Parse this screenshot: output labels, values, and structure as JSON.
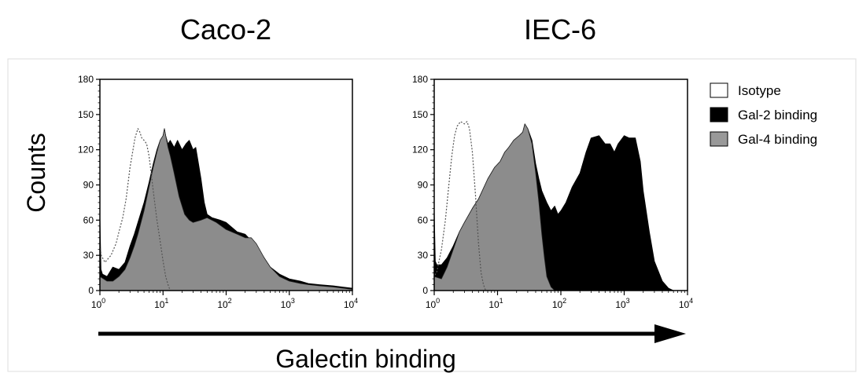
{
  "chart_data": [
    {
      "type": "area",
      "title": "Caco-2",
      "ylabel": "Counts",
      "xscale": "log",
      "xlim": [
        1,
        10000
      ],
      "ylim": [
        0,
        180
      ],
      "x_ticks": [
        1,
        10,
        100,
        1000,
        10000
      ],
      "x_tick_labels": [
        {
          "base": "10",
          "exp": "0"
        },
        {
          "base": "10",
          "exp": "1"
        },
        {
          "base": "10",
          "exp": "2"
        },
        {
          "base": "10",
          "exp": "3"
        },
        {
          "base": "10",
          "exp": "4"
        }
      ],
      "y_ticks": [
        "0",
        "30",
        "60",
        "90",
        "120",
        "150",
        "180"
      ],
      "series": [
        {
          "name": "Isotype",
          "style": "dotted-outline",
          "points": [
            [
              1.0,
              0
            ],
            [
              1.0,
              38
            ],
            [
              1.05,
              30
            ],
            [
              1.2,
              24
            ],
            [
              1.5,
              30
            ],
            [
              1.8,
              40
            ],
            [
              2.0,
              50
            ],
            [
              2.3,
              62
            ],
            [
              2.6,
              78
            ],
            [
              3.0,
              105
            ],
            [
              3.3,
              118
            ],
            [
              3.6,
              130
            ],
            [
              4.0,
              138
            ],
            [
              4.3,
              135
            ],
            [
              4.6,
              130
            ],
            [
              5.0,
              128
            ],
            [
              5.5,
              125
            ],
            [
              6.0,
              115
            ],
            [
              6.5,
              100
            ],
            [
              7.0,
              85
            ],
            [
              8.0,
              60
            ],
            [
              9.0,
              42
            ],
            [
              10.0,
              25
            ],
            [
              11.0,
              12
            ],
            [
              12.0,
              5
            ],
            [
              13.0,
              0
            ]
          ]
        },
        {
          "name": "Gal-2 binding",
          "style": "black-fill",
          "points": [
            [
              1.0,
              0
            ],
            [
              1.0,
              65
            ],
            [
              1.04,
              18
            ],
            [
              1.1,
              14
            ],
            [
              1.3,
              12
            ],
            [
              1.6,
              20
            ],
            [
              2.0,
              18
            ],
            [
              2.5,
              24
            ],
            [
              3.0,
              38
            ],
            [
              3.5,
              48
            ],
            [
              4.0,
              58
            ],
            [
              5.0,
              75
            ],
            [
              6.0,
              92
            ],
            [
              7.0,
              108
            ],
            [
              8.0,
              120
            ],
            [
              9.0,
              128
            ],
            [
              10.0,
              132
            ],
            [
              10.5,
              138
            ],
            [
              11.0,
              132
            ],
            [
              12.0,
              125
            ],
            [
              13.0,
              128
            ],
            [
              15.0,
              122
            ],
            [
              17.0,
              128
            ],
            [
              20.0,
              120
            ],
            [
              23.0,
              125
            ],
            [
              26.0,
              128
            ],
            [
              30.0,
              120
            ],
            [
              33.0,
              122
            ],
            [
              36.0,
              110
            ],
            [
              40.0,
              95
            ],
            [
              45.0,
              75
            ],
            [
              50.0,
              65
            ],
            [
              60.0,
              62
            ],
            [
              80.0,
              60
            ],
            [
              100.0,
              58
            ],
            [
              150.0,
              50
            ],
            [
              200.0,
              48
            ],
            [
              300.0,
              38
            ],
            [
              400.0,
              28
            ],
            [
              500.0,
              20
            ],
            [
              700.0,
              14
            ],
            [
              1000.0,
              10
            ],
            [
              1500.0,
              8
            ],
            [
              2000.0,
              6
            ],
            [
              3000.0,
              5
            ],
            [
              5000.0,
              4
            ],
            [
              7000.0,
              3
            ],
            [
              10000.0,
              2
            ],
            [
              10000.0,
              0
            ]
          ]
        },
        {
          "name": "Gal-4 binding",
          "style": "gray-fill",
          "points": [
            [
              1.0,
              0
            ],
            [
              1.0,
              12
            ],
            [
              1.3,
              8
            ],
            [
              1.6,
              8
            ],
            [
              2.0,
              12
            ],
            [
              2.5,
              18
            ],
            [
              3.0,
              28
            ],
            [
              3.5,
              38
            ],
            [
              4.0,
              48
            ],
            [
              5.0,
              68
            ],
            [
              6.0,
              88
            ],
            [
              7.0,
              105
            ],
            [
              8.0,
              118
            ],
            [
              9.0,
              128
            ],
            [
              10.0,
              132
            ],
            [
              10.5,
              138
            ],
            [
              11.0,
              132
            ],
            [
              12.0,
              122
            ],
            [
              13.0,
              115
            ],
            [
              15.0,
              100
            ],
            [
              18.0,
              80
            ],
            [
              22.0,
              65
            ],
            [
              26.0,
              60
            ],
            [
              30.0,
              58
            ],
            [
              40.0,
              60
            ],
            [
              50.0,
              62
            ],
            [
              70.0,
              58
            ],
            [
              100.0,
              52
            ],
            [
              150.0,
              48
            ],
            [
              200.0,
              45
            ],
            [
              250.0,
              45
            ],
            [
              300.0,
              40
            ],
            [
              400.0,
              28
            ],
            [
              500.0,
              20
            ],
            [
              700.0,
              12
            ],
            [
              1000.0,
              8
            ],
            [
              1500.0,
              6
            ],
            [
              2000.0,
              5
            ],
            [
              3000.0,
              4
            ],
            [
              5000.0,
              3
            ],
            [
              7000.0,
              2
            ],
            [
              10000.0,
              1
            ],
            [
              10000.0,
              0
            ]
          ]
        }
      ]
    },
    {
      "type": "area",
      "title": "IEC-6",
      "xscale": "log",
      "xlim": [
        1,
        10000
      ],
      "ylim": [
        0,
        180
      ],
      "x_ticks": [
        1,
        10,
        100,
        1000,
        10000
      ],
      "x_tick_labels": [
        {
          "base": "10",
          "exp": "0"
        },
        {
          "base": "10",
          "exp": "1"
        },
        {
          "base": "10",
          "exp": "2"
        },
        {
          "base": "10",
          "exp": "3"
        },
        {
          "base": "10",
          "exp": "4"
        }
      ],
      "y_ticks": [
        "0",
        "30",
        "60",
        "90",
        "120",
        "150",
        "180"
      ],
      "series": [
        {
          "name": "Isotype",
          "style": "dotted-outline",
          "points": [
            [
              1.0,
              0
            ],
            [
              1.0,
              12
            ],
            [
              1.1,
              16
            ],
            [
              1.3,
              35
            ],
            [
              1.5,
              60
            ],
            [
              1.7,
              90
            ],
            [
              1.9,
              115
            ],
            [
              2.1,
              132
            ],
            [
              2.3,
              140
            ],
            [
              2.6,
              144
            ],
            [
              3.0,
              142
            ],
            [
              3.3,
              144
            ],
            [
              3.6,
              138
            ],
            [
              4.0,
              118
            ],
            [
              4.5,
              80
            ],
            [
              5.0,
              40
            ],
            [
              5.5,
              15
            ],
            [
              6.0,
              5
            ],
            [
              6.5,
              0
            ]
          ]
        },
        {
          "name": "Gal-2 binding",
          "style": "black-fill",
          "points": [
            [
              1.0,
              0
            ],
            [
              1.0,
              70
            ],
            [
              1.04,
              25
            ],
            [
              1.1,
              22
            ],
            [
              1.3,
              22
            ],
            [
              1.6,
              28
            ],
            [
              2.0,
              38
            ],
            [
              2.5,
              50
            ],
            [
              3.0,
              58
            ],
            [
              4.0,
              70
            ],
            [
              5.0,
              78
            ],
            [
              7.0,
              95
            ],
            [
              9.0,
              105
            ],
            [
              11.0,
              110
            ],
            [
              13.0,
              118
            ],
            [
              15.0,
              122
            ],
            [
              18.0,
              128
            ],
            [
              22.0,
              132
            ],
            [
              25.0,
              135
            ],
            [
              27.0,
              142
            ],
            [
              30.0,
              138
            ],
            [
              35.0,
              128
            ],
            [
              40.0,
              108
            ],
            [
              45.0,
              95
            ],
            [
              50.0,
              85
            ],
            [
              60.0,
              75
            ],
            [
              70.0,
              68
            ],
            [
              80.0,
              72
            ],
            [
              90.0,
              65
            ],
            [
              100.0,
              68
            ],
            [
              120.0,
              75
            ],
            [
              150.0,
              88
            ],
            [
              200.0,
              100
            ],
            [
              250.0,
              118
            ],
            [
              300.0,
              130
            ],
            [
              400.0,
              132
            ],
            [
              500.0,
              125
            ],
            [
              600.0,
              125
            ],
            [
              700.0,
              118
            ],
            [
              800.0,
              125
            ],
            [
              1000.0,
              132
            ],
            [
              1200.0,
              130
            ],
            [
              1500.0,
              130
            ],
            [
              1800.0,
              110
            ],
            [
              2000.0,
              85
            ],
            [
              2500.0,
              50
            ],
            [
              3000.0,
              25
            ],
            [
              4000.0,
              8
            ],
            [
              5000.0,
              2
            ],
            [
              6000.0,
              0
            ]
          ]
        },
        {
          "name": "Gal-4 binding",
          "style": "gray-fill",
          "points": [
            [
              1.0,
              0
            ],
            [
              1.0,
              12
            ],
            [
              1.3,
              10
            ],
            [
              1.6,
              20
            ],
            [
              2.0,
              35
            ],
            [
              2.5,
              50
            ],
            [
              3.0,
              58
            ],
            [
              4.0,
              70
            ],
            [
              5.0,
              78
            ],
            [
              7.0,
              95
            ],
            [
              9.0,
              105
            ],
            [
              11.0,
              110
            ],
            [
              13.0,
              118
            ],
            [
              15.0,
              122
            ],
            [
              18.0,
              128
            ],
            [
              22.0,
              132
            ],
            [
              25.0,
              135
            ],
            [
              27.0,
              142
            ],
            [
              30.0,
              138
            ],
            [
              35.0,
              125
            ],
            [
              40.0,
              100
            ],
            [
              45.0,
              75
            ],
            [
              50.0,
              48
            ],
            [
              55.0,
              28
            ],
            [
              60.0,
              12
            ],
            [
              70.0,
              3
            ],
            [
              80.0,
              0
            ]
          ]
        }
      ]
    }
  ],
  "legend": {
    "placement": "right",
    "items": [
      {
        "label": "Isotype",
        "swatch": "#ffffff"
      },
      {
        "label": "Gal-2 binding",
        "swatch": "#000000"
      },
      {
        "label": "Gal-4 binding",
        "swatch": "#999999"
      }
    ]
  },
  "shared_xlabel": "Galectin binding",
  "colors": {
    "gal2": "#000000",
    "gal4": "#8c8c8c",
    "isotype_line": "#555555",
    "frame": "#dddddd"
  }
}
